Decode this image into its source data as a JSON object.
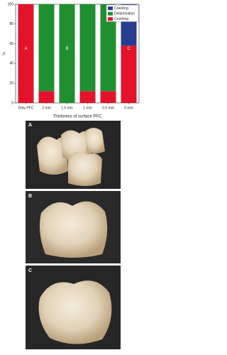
{
  "chart_data": {
    "type": "stacked_bar",
    "x_label": "Thickness of surface PFC",
    "y_label": "%",
    "categories": [
      "Only PFC",
      "2 mm",
      "1.5 mm",
      "1 mm",
      "0.5 mm",
      "0 mm"
    ],
    "series": [
      {
        "name": "Crushing",
        "color": "#e3132b",
        "values": [
          100,
          12,
          0,
          12,
          12,
          58
        ]
      },
      {
        "name": "Delamination",
        "color": "#1f8f2f",
        "values": [
          0,
          88,
          100,
          88,
          88,
          0
        ]
      },
      {
        "name": "Cracking",
        "color": "#273c8e",
        "values": [
          0,
          0,
          0,
          0,
          0,
          42
        ]
      }
    ],
    "annotations": [
      {
        "label": "A",
        "category": "Only PFC"
      },
      {
        "label": "B",
        "category": "1.5 mm"
      },
      {
        "label": "C",
        "category": "0 mm"
      }
    ],
    "ylim": [
      0,
      100
    ],
    "yticks": [
      0,
      20,
      40,
      60,
      80,
      100
    ],
    "legend": "upper right",
    "legend_order": "reversed"
  },
  "figure_panels": [
    {
      "label": "A"
    },
    {
      "label": "B"
    },
    {
      "label": "C"
    }
  ]
}
